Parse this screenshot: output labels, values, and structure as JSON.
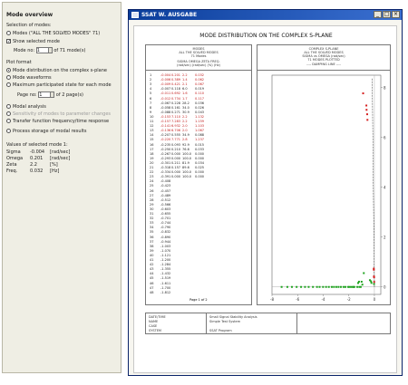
{
  "panel": {
    "title": "Mode overview",
    "selection_heading": "Selection of modes:",
    "modes_all_label": "Modes (\"ALL THE SOLVED MODES\" 71)",
    "show_selected_label": "Show selected mode",
    "mode_no_label": "Mode no:",
    "mode_no_value": "1",
    "mode_of_label": "of",
    "mode_total": "71",
    "mode_unit": "mode(s)",
    "plot_format_heading": "Plot format",
    "opt_distribution": "Mode distribution on the complex s-plane",
    "opt_waveforms": "Mode waveforms",
    "opt_max_state": "Maximum participated state for each mode",
    "page_no_label": "Page no:",
    "page_no_value": "1",
    "page_of_label": "of",
    "page_total": "2",
    "page_unit": "page(s)",
    "opt_modal_analysis": "Modal analysis",
    "opt_sensitivity": "Sensitivity of modes to parameter changes",
    "opt_transfer": "Transfer function frequency/time response",
    "opt_process_storage": "Process storage of modal results",
    "values_heading": "Values of selected mode 1:",
    "values": [
      {
        "name": "Sigma",
        "value": "-0.004",
        "unit": "[rad/sec]"
      },
      {
        "name": "Omega",
        "value": "0.201",
        "unit": "[rad/sec]"
      },
      {
        "name": "Zeta",
        "value": "2.2",
        "unit": "[%]"
      },
      {
        "name": "Freq.",
        "value": "0.032",
        "unit": "[Hz]"
      }
    ]
  },
  "window": {
    "title": "SSAT W. AUSGABE",
    "page_title": "MODE DISTRIBUTION ON THE COMPLEX S-PLANE",
    "table_header": [
      "MODES",
      "ALL THE SOLVED MODES",
      "71 Modes",
      "SIGMA   OMEGA   ZETA   FREQ."
    ],
    "table_units": "(rad/sec)  (rad/sec)  (%)  (Hz)",
    "plot_header": [
      "COMPLEX S-PLANE",
      "ALL THE SOLVED MODES",
      "SIGMA vs OMEGA (rad/sec)",
      "71 MODES PLOTTED"
    ],
    "plot_legend": "---- DAMPING LINE ----",
    "page_footer": "Page 1 of 2",
    "footer": {
      "left": [
        "DATE/TIME",
        "NAME",
        "CASE",
        "SYSTEM"
      ],
      "mid": [
        "Small Signal Stability Analysis",
        "Simple Test System"
      ],
      "right": [
        "SSAT Program"
      ]
    },
    "rows": [
      {
        "no": "1",
        "s": "-0.004",
        "w": "0.201",
        "z": "2.2",
        "f": "0.032",
        "hl": true
      },
      {
        "no": "2",
        "s": "-0.006",
        "w": "0.389",
        "z": "1.4",
        "f": "0.062",
        "hl": true
      },
      {
        "no": "3",
        "s": "-0.009",
        "w": "0.421",
        "z": "2.1",
        "f": "0.067",
        "hl": true
      },
      {
        "no": "4",
        "s": "-0.007",
        "w": "0.118",
        "z": "6.0",
        "f": "0.019",
        "hl": false
      },
      {
        "no": "5",
        "s": "-0.011",
        "w": "0.692",
        "z": "1.6",
        "f": "0.110",
        "hl": true
      },
      {
        "no": "6",
        "s": "-0.012",
        "w": "0.734",
        "z": "1.7",
        "f": "0.117",
        "hl": true
      },
      {
        "no": "7",
        "s": "-0.067",
        "w": "0.228",
        "z": "28.2",
        "f": "0.036",
        "hl": false
      },
      {
        "no": "8",
        "s": "-0.058",
        "w": "0.161",
        "z": "34.0",
        "f": "0.026",
        "hl": false
      },
      {
        "no": "9",
        "s": "-0.088",
        "w": "0.271",
        "z": "30.9",
        "f": "0.043",
        "hl": false
      },
      {
        "no": "10",
        "s": "-0.153",
        "w": "7.110",
        "z": "2.2",
        "f": "1.132",
        "hl": true
      },
      {
        "no": "11",
        "s": "-0.157",
        "w": "7.283",
        "z": "2.2",
        "f": "1.159",
        "hl": true
      },
      {
        "no": "12",
        "s": "-0.141",
        "w": "6.932",
        "z": "2.0",
        "f": "1.103",
        "hl": true
      },
      {
        "no": "13",
        "s": "-0.136",
        "w": "6.706",
        "z": "2.0",
        "f": "1.067",
        "hl": true
      },
      {
        "no": "14",
        "s": "-0.207",
        "w": "0.555",
        "z": "34.9",
        "f": "0.088",
        "hl": false
      },
      {
        "no": "15",
        "s": "-0.220",
        "w": "7.771",
        "z": "2.8",
        "f": "1.237",
        "hl": true
      },
      {
        "no": "16",
        "s": "-0.235",
        "w": "0.093",
        "z": "92.9",
        "f": "0.015",
        "hl": false
      },
      {
        "no": "17",
        "s": "-0.250",
        "w": "0.210",
        "z": "76.6",
        "f": "0.033",
        "hl": false
      },
      {
        "no": "18",
        "s": "-0.267",
        "w": "0.000",
        "z": "100.0",
        "f": "0.000",
        "hl": false
      },
      {
        "no": "19",
        "s": "-0.293",
        "w": "0.000",
        "z": "100.0",
        "f": "0.000",
        "hl": false
      },
      {
        "no": "20",
        "s": "-0.301",
        "w": "0.211",
        "z": "81.9",
        "f": "0.034",
        "hl": false
      },
      {
        "no": "21",
        "s": "-0.318",
        "w": "0.157",
        "z": "89.6",
        "f": "0.025",
        "hl": false
      },
      {
        "no": "22",
        "s": "-0.334",
        "w": "0.000",
        "z": "100.0",
        "f": "0.000",
        "hl": false
      },
      {
        "no": "23",
        "s": "-0.391",
        "w": "0.000",
        "z": "100.0",
        "f": "0.000",
        "hl": false
      },
      {
        "no": "24",
        "s": "-0.408",
        "w": "",
        "z": "",
        "f": "",
        "hl": false
      },
      {
        "no": "25",
        "s": "-0.423",
        "w": "",
        "z": "",
        "f": "",
        "hl": false
      },
      {
        "no": "26",
        "s": "-0.457",
        "w": "",
        "z": "",
        "f": "",
        "hl": false
      },
      {
        "no": "27",
        "s": "-0.489",
        "w": "",
        "z": "",
        "f": "",
        "hl": false
      },
      {
        "no": "28",
        "s": "-0.512",
        "w": "",
        "z": "",
        "f": "",
        "hl": false
      },
      {
        "no": "29",
        "s": "-0.566",
        "w": "",
        "z": "",
        "f": "",
        "hl": false
      },
      {
        "no": "30",
        "s": "-0.603",
        "w": "",
        "z": "",
        "f": "",
        "hl": false
      },
      {
        "no": "31",
        "s": "-0.655",
        "w": "",
        "z": "",
        "f": "",
        "hl": false
      },
      {
        "no": "32",
        "s": "-0.701",
        "w": "",
        "z": "",
        "f": "",
        "hl": false
      },
      {
        "no": "33",
        "s": "-0.744",
        "w": "",
        "z": "",
        "f": "",
        "hl": false
      },
      {
        "no": "34",
        "s": "-0.790",
        "w": "",
        "z": "",
        "f": "",
        "hl": false
      },
      {
        "no": "35",
        "s": "-0.832",
        "w": "",
        "z": "",
        "f": "",
        "hl": false
      },
      {
        "no": "36",
        "s": "-0.890",
        "w": "",
        "z": "",
        "f": "",
        "hl": false
      },
      {
        "no": "37",
        "s": "-0.944",
        "w": "",
        "z": "",
        "f": "",
        "hl": false
      },
      {
        "no": "38",
        "s": "-1.003",
        "w": "",
        "z": "",
        "f": "",
        "hl": false
      },
      {
        "no": "39",
        "s": "-1.070",
        "w": "",
        "z": "",
        "f": "",
        "hl": false
      },
      {
        "no": "40",
        "s": "-1.121",
        "w": "",
        "z": "",
        "f": "",
        "hl": false
      },
      {
        "no": "41",
        "s": "-1.200",
        "w": "",
        "z": "",
        "f": "",
        "hl": false
      },
      {
        "no": "42",
        "s": "-1.284",
        "w": "",
        "z": "",
        "f": "",
        "hl": false
      },
      {
        "no": "43",
        "s": "-1.355",
        "w": "",
        "z": "",
        "f": "",
        "hl": false
      },
      {
        "no": "44",
        "s": "-1.432",
        "w": "",
        "z": "",
        "f": "",
        "hl": false
      },
      {
        "no": "45",
        "s": "-1.519",
        "w": "",
        "z": "",
        "f": "",
        "hl": false
      },
      {
        "no": "46",
        "s": "-1.611",
        "w": "",
        "z": "",
        "f": "",
        "hl": false
      },
      {
        "no": "47",
        "s": "-1.700",
        "w": "",
        "z": "",
        "f": "",
        "hl": false
      },
      {
        "no": "48",
        "s": "-1.812",
        "w": "",
        "z": "",
        "f": "",
        "hl": false
      }
    ],
    "x_ticks": [
      "-8",
      "-6",
      "-4",
      "-2",
      "0"
    ],
    "y_ticks": [
      "0",
      "2",
      "4",
      "6",
      "8"
    ],
    "colors": {
      "stable": "#1fa31f",
      "lightly_damped": "#d62020",
      "damping_line": "#333333"
    }
  }
}
